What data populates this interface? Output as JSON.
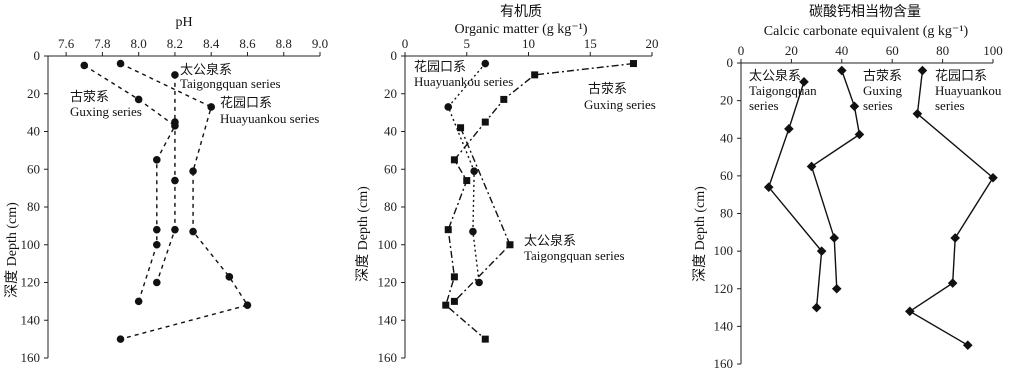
{
  "chart_data": [
    {
      "type": "line",
      "title": "pH",
      "xlabel": "pH",
      "ylabel": "深度 Depth (cm)",
      "x_ticks": [
        "7.6",
        "7.8",
        "8.0",
        "8.2",
        "8.4",
        "8.6",
        "8.8",
        "9.0"
      ],
      "y_ticks": [
        "0",
        "20",
        "40",
        "60",
        "80",
        "100",
        "120",
        "140",
        "160"
      ],
      "xlim": [
        7.5,
        9.0
      ],
      "ylim": [
        0,
        160
      ],
      "x_axis_position": "top",
      "series": [
        {
          "name": "太公泉系 Taigongquan series",
          "marker": "circle",
          "points": [
            [
              8.2,
              10
            ],
            [
              8.2,
              35
            ],
            [
              8.2,
              66
            ],
            [
              8.2,
              92
            ],
            [
              8.1,
              120
            ]
          ]
        },
        {
          "name": "古荥系 Guxing series",
          "marker": "circle",
          "points": [
            [
              7.9,
              4
            ],
            [
              8.4,
              27
            ],
            [
              8.3,
              61
            ],
            [
              8.3,
              93
            ],
            [
              8.5,
              117
            ],
            [
              8.6,
              132
            ],
            [
              7.9,
              150
            ]
          ]
        },
        {
          "name": "花园口系 Huayuankou series",
          "marker": "circle",
          "points": [
            [
              7.7,
              5
            ],
            [
              8.0,
              23
            ],
            [
              8.2,
              37
            ],
            [
              8.1,
              55
            ],
            [
              8.1,
              92
            ],
            [
              8.1,
              100
            ],
            [
              8.0,
              130
            ]
          ]
        }
      ],
      "labels": [
        {
          "text": "太公泉系",
          "sub": "Taigongquan series"
        },
        {
          "text": "古荥系",
          "sub": "Guxing series"
        },
        {
          "text": "花园口系",
          "sub": "Huayuankou series"
        }
      ]
    },
    {
      "type": "line",
      "title": "有机质",
      "subtitle": "Organic matter (g kg⁻¹)",
      "ylabel": "深度 Depth (cm)",
      "x_ticks": [
        "0",
        "5",
        "10",
        "15",
        "20"
      ],
      "y_ticks": [
        "0",
        "20",
        "40",
        "60",
        "80",
        "100",
        "120",
        "140",
        "160"
      ],
      "xlim": [
        0,
        20
      ],
      "ylim": [
        0,
        160
      ],
      "x_axis_position": "top",
      "series": [
        {
          "name": "花园口系 Huayuankou series",
          "marker": "circle",
          "points": [
            [
              6.5,
              4
            ],
            [
              3.5,
              27
            ],
            [
              5.6,
              61
            ],
            [
              5.5,
              93
            ],
            [
              6.0,
              120
            ]
          ]
        },
        {
          "name": "古荥系 Guxing series",
          "marker": "square",
          "points": [
            [
              18.5,
              4
            ],
            [
              10.5,
              10
            ],
            [
              8,
              23
            ],
            [
              6.5,
              35
            ],
            [
              4,
              55
            ],
            [
              5,
              66
            ],
            [
              3.5,
              92
            ],
            [
              4,
              117
            ],
            [
              3.3,
              132
            ],
            [
              6.5,
              150
            ]
          ]
        },
        {
          "name": "太公泉系 Taigongquan series",
          "marker": "square",
          "points": [
            [
              4.5,
              38
            ],
            [
              8.5,
              100
            ],
            [
              4,
              130
            ]
          ]
        }
      ],
      "labels": [
        {
          "text": "花园口系",
          "sub": "Huayuankou series"
        },
        {
          "text": "古荥系",
          "sub": "Guxing series"
        },
        {
          "text": "太公泉系",
          "sub": "Taigongquan series"
        }
      ]
    },
    {
      "type": "line",
      "title": "碳酸钙相当物含量",
      "subtitle": "Calcic carbonate equivalent (g kg⁻¹)",
      "ylabel": "深度 Depth (cm)",
      "x_ticks": [
        "0",
        "20",
        "40",
        "60",
        "80",
        "100"
      ],
      "y_ticks": [
        "0",
        "20",
        "40",
        "60",
        "80",
        "100",
        "120",
        "140",
        "160"
      ],
      "xlim": [
        0,
        100
      ],
      "ylim": [
        0,
        160
      ],
      "x_axis_position": "top",
      "series": [
        {
          "name": "太公泉系 Taigongquan series",
          "marker": "diamond",
          "points": [
            [
              25,
              10
            ],
            [
              19,
              35
            ],
            [
              11,
              66
            ],
            [
              32,
              100
            ],
            [
              30,
              130
            ]
          ]
        },
        {
          "name": "古荥系 Guxing series",
          "marker": "diamond",
          "points": [
            [
              40,
              4
            ],
            [
              45,
              23
            ],
            [
              47,
              38
            ],
            [
              28,
              55
            ],
            [
              37,
              93
            ],
            [
              38,
              120
            ]
          ]
        },
        {
          "name": "花园口系 Huayuankou series",
          "marker": "diamond",
          "points": [
            [
              72,
              4
            ],
            [
              70,
              27
            ],
            [
              100,
              61
            ],
            [
              85,
              93
            ],
            [
              84,
              117
            ],
            [
              67,
              132
            ],
            [
              90,
              150
            ]
          ]
        }
      ],
      "labels": [
        {
          "text": "太公泉系",
          "sub": "Taigongquan",
          "sub2": "series"
        },
        {
          "text": "古荥系",
          "sub": "Guxing",
          "sub2": "series"
        },
        {
          "text": "花园口系",
          "sub": "Huayuankou",
          "sub2": "series"
        }
      ]
    }
  ]
}
